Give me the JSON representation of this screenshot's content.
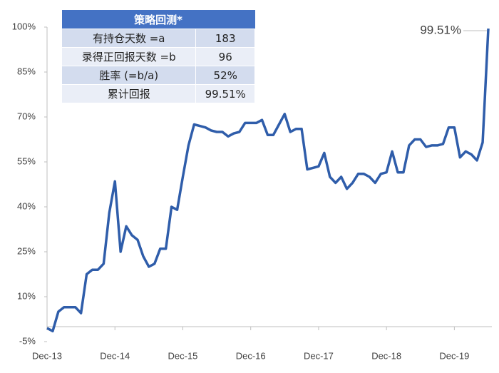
{
  "chart_data": {
    "type": "line",
    "x": [
      "Dec-13",
      "Jan-14",
      "Feb-14",
      "Mar-14",
      "Apr-14",
      "May-14",
      "Jun-14",
      "Jul-14",
      "Aug-14",
      "Sep-14",
      "Oct-14",
      "Nov-14",
      "Dec-14",
      "Jan-15",
      "Feb-15",
      "Mar-15",
      "Apr-15",
      "May-15",
      "Jun-15",
      "Jul-15",
      "Aug-15",
      "Sep-15",
      "Oct-15",
      "Nov-15",
      "Dec-15",
      "Jan-16",
      "Feb-16",
      "Mar-16",
      "Apr-16",
      "May-16",
      "Jun-16",
      "Jul-16",
      "Aug-16",
      "Sep-16",
      "Oct-16",
      "Nov-16",
      "Dec-16",
      "Jan-17",
      "Feb-17",
      "Mar-17",
      "Apr-17",
      "May-17",
      "Jun-17",
      "Jul-17",
      "Aug-17",
      "Sep-17",
      "Oct-17",
      "Nov-17",
      "Dec-17",
      "Jan-18",
      "Feb-18",
      "Mar-18",
      "Apr-18",
      "May-18",
      "Jun-18",
      "Jul-18",
      "Aug-18",
      "Sep-18",
      "Oct-18",
      "Nov-18",
      "Dec-18",
      "Jan-19",
      "Feb-19",
      "Mar-19",
      "Apr-19",
      "May-19",
      "Jun-19",
      "Jul-19",
      "Aug-19",
      "Sep-19",
      "Oct-19",
      "Nov-19",
      "Dec-19",
      "Jan-20",
      "Feb-20",
      "Mar-20",
      "Apr-20",
      "May-20",
      "Jun-20"
    ],
    "series": [
      {
        "color": "#2f5daa",
        "values": [
          -0.5,
          -1.5,
          5,
          6.5,
          6.5,
          6.5,
          4.5,
          17.5,
          19,
          19,
          21,
          38,
          48.5,
          25,
          33.5,
          30.5,
          29,
          23.5,
          20,
          21,
          26,
          26,
          40,
          39,
          50,
          60.5,
          67.5,
          67,
          66.5,
          65.5,
          65,
          65,
          63.5,
          64.5,
          65,
          68,
          68,
          68,
          69,
          64,
          64,
          67.5,
          71,
          65,
          66,
          66,
          52.5,
          53,
          53.5,
          58,
          50,
          48,
          50,
          46,
          48,
          51,
          51,
          50,
          48,
          51,
          51.5,
          58.5,
          51.5,
          51.5,
          60.5,
          62.5,
          62.5,
          60,
          60.5,
          60.5,
          61,
          66.5,
          66.5,
          56.5,
          58.5,
          57.5,
          55.5,
          61.5,
          99.51
        ]
      }
    ],
    "xticks": [
      "Dec-13",
      "Dec-14",
      "Dec-15",
      "Dec-16",
      "Dec-17",
      "Dec-18",
      "Dec-19"
    ],
    "ylim": [
      -5,
      100
    ],
    "yticks": [
      {
        "value": -5,
        "label": "-5%"
      },
      {
        "value": 10,
        "label": "10%"
      },
      {
        "value": 25,
        "label": "25%"
      },
      {
        "value": 40,
        "label": "40%"
      },
      {
        "value": 55,
        "label": "55%"
      },
      {
        "value": 70,
        "label": "70%"
      },
      {
        "value": 85,
        "label": "85%"
      },
      {
        "value": 100,
        "label": "100%"
      }
    ],
    "annotation": "99.51%"
  },
  "table": {
    "title": "策略回测*",
    "rows": [
      [
        "有持仓天数 =a",
        "183"
      ],
      [
        "录得正回报天数 =b",
        "96"
      ],
      [
        "胜率 (=b/a)",
        "52%"
      ],
      [
        "累计回报",
        "99.51%"
      ]
    ]
  }
}
